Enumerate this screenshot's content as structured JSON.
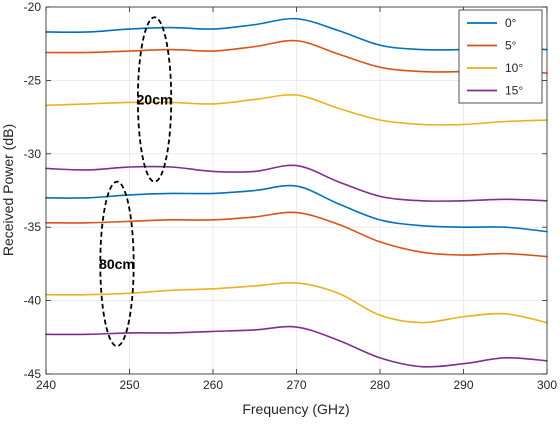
{
  "chart_data": {
    "type": "line",
    "title": "",
    "xlabel": "Frequency (GHz)",
    "ylabel": "Received Power (dB)",
    "xlim": [
      240,
      300
    ],
    "ylim": [
      -45,
      -20
    ],
    "xticks": [
      240,
      250,
      260,
      270,
      280,
      290,
      300
    ],
    "yticks": [
      -20,
      -25,
      -30,
      -35,
      -40,
      -45
    ],
    "grid": true,
    "legend": {
      "position": "top-right",
      "entries": [
        {
          "label": "0°",
          "color": "#0072BD"
        },
        {
          "label": "5°",
          "color": "#D95319"
        },
        {
          "label": "10°",
          "color": "#EDB120"
        },
        {
          "label": "15°",
          "color": "#7E2F8E"
        }
      ]
    },
    "x": [
      240,
      245,
      250,
      255,
      260,
      265,
      270,
      275,
      280,
      285,
      290,
      295,
      300
    ],
    "series": [
      {
        "name": "0°",
        "color": "#0072BD",
        "values": [
          -21.7,
          -21.7,
          -21.5,
          -21.4,
          -21.5,
          -21.2,
          -20.8,
          -21.6,
          -22.6,
          -22.9,
          -22.9,
          -22.8,
          -22.9
        ]
      },
      {
        "name": "5°",
        "color": "#D95319",
        "values": [
          -23.1,
          -23.1,
          -23.0,
          -22.9,
          -23.0,
          -22.7,
          -22.3,
          -23.2,
          -24.1,
          -24.4,
          -24.4,
          -24.3,
          -24.5
        ]
      },
      {
        "name": "10°",
        "color": "#EDB120",
        "values": [
          -26.7,
          -26.6,
          -26.5,
          -26.5,
          -26.6,
          -26.3,
          -26.0,
          -26.9,
          -27.7,
          -28.0,
          -28.0,
          -27.8,
          -27.7
        ]
      },
      {
        "name": "15°",
        "color": "#7E2F8E",
        "values": [
          -31.0,
          -31.1,
          -30.9,
          -30.9,
          -31.2,
          -31.2,
          -30.8,
          -31.9,
          -32.9,
          -33.2,
          -33.2,
          -33.1,
          -33.2
        ]
      },
      {
        "name": "0°",
        "color": "#0072BD",
        "values": [
          -33.0,
          -33.0,
          -32.8,
          -32.7,
          -32.7,
          -32.5,
          -32.2,
          -33.4,
          -34.5,
          -34.9,
          -35.0,
          -35.0,
          -35.3
        ]
      },
      {
        "name": "5°",
        "color": "#D95319",
        "values": [
          -34.7,
          -34.7,
          -34.6,
          -34.5,
          -34.5,
          -34.3,
          -34.0,
          -34.8,
          -36.0,
          -36.7,
          -36.9,
          -36.8,
          -37.0
        ]
      },
      {
        "name": "10°",
        "color": "#EDB120",
        "values": [
          -39.6,
          -39.6,
          -39.5,
          -39.3,
          -39.2,
          -39.0,
          -38.8,
          -39.5,
          -41.0,
          -41.5,
          -41.1,
          -40.9,
          -41.5
        ]
      },
      {
        "name": "15°",
        "color": "#7E2F8E",
        "values": [
          -42.3,
          -42.3,
          -42.2,
          -42.2,
          -42.1,
          -42.0,
          -41.8,
          -42.7,
          -43.9,
          -44.5,
          -44.3,
          -43.9,
          -44.1
        ]
      }
    ],
    "annotations": [
      {
        "text": "20cm",
        "cx": 253,
        "cy": -26.3,
        "rx": 2.0,
        "ry": 5.6
      },
      {
        "text": "80cm",
        "cx": 248.5,
        "cy": -37.5,
        "rx": 2.0,
        "ry": 5.6
      }
    ]
  }
}
